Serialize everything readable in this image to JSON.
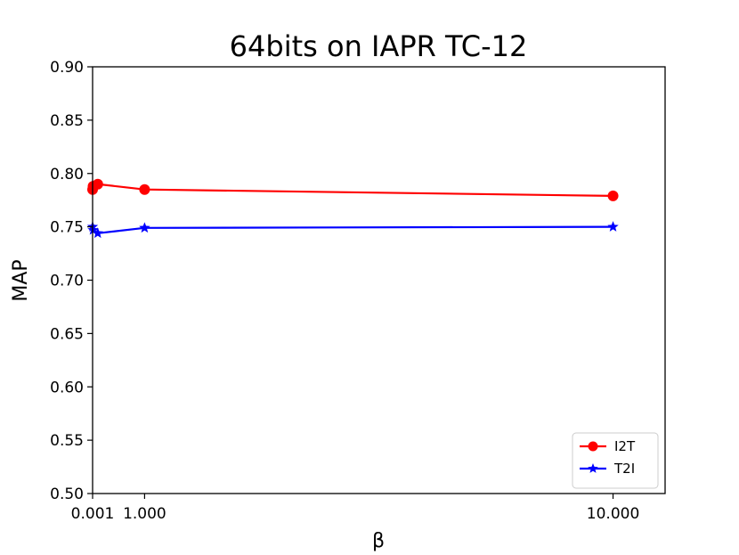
{
  "chart_data": {
    "type": "line",
    "title": "64bits on IAPR TC-12",
    "xlabel": "β",
    "ylabel": "MAP",
    "xlim": [
      0.001,
      11.0
    ],
    "ylim": [
      0.5,
      0.9
    ],
    "xticks": [
      {
        "value": 0.001,
        "label": "0.001"
      },
      {
        "value": 1.0,
        "label": "1.000"
      },
      {
        "value": 10.0,
        "label": "10.000"
      }
    ],
    "yticks": [
      {
        "value": 0.5,
        "label": "0.50"
      },
      {
        "value": 0.55,
        "label": "0.55"
      },
      {
        "value": 0.6,
        "label": "0.60"
      },
      {
        "value": 0.65,
        "label": "0.65"
      },
      {
        "value": 0.7,
        "label": "0.70"
      },
      {
        "value": 0.75,
        "label": "0.75"
      },
      {
        "value": 0.8,
        "label": "0.80"
      },
      {
        "value": 0.85,
        "label": "0.85"
      },
      {
        "value": 0.9,
        "label": "0.90"
      }
    ],
    "grid": false,
    "legend_position": "lower-right",
    "series": [
      {
        "name": "I2T",
        "color": "#ff0000",
        "marker": "circle",
        "x": [
          0.001,
          0.01,
          0.1,
          1.0,
          10.0
        ],
        "y": [
          0.785,
          0.788,
          0.79,
          0.785,
          0.779
        ]
      },
      {
        "name": "T2I",
        "color": "#0000ff",
        "marker": "star",
        "x": [
          0.001,
          0.01,
          0.1,
          1.0,
          10.0
        ],
        "y": [
          0.75,
          0.747,
          0.744,
          0.749,
          0.75
        ]
      }
    ]
  }
}
